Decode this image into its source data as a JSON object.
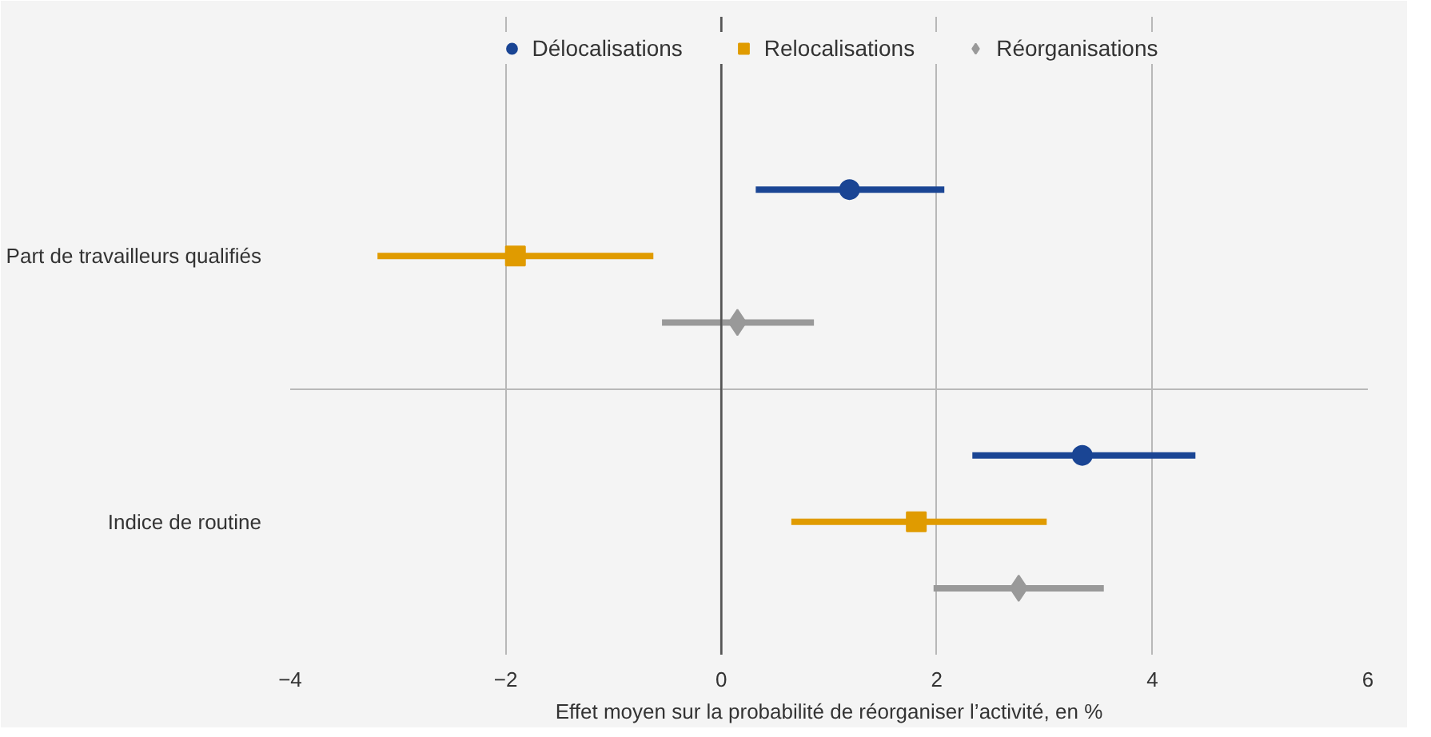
{
  "chart_data": {
    "type": "scatter",
    "orientation": "horizontal",
    "xlabel": "Effet moyen sur la probabilité de réorganiser l’activité, en %",
    "categories": [
      "Part de travailleurs qualifiés",
      "Indice de routine"
    ],
    "series": [
      {
        "name": "Délocalisations",
        "color": "#1a4594",
        "marker": "circle",
        "values": [
          1.19,
          3.35
        ],
        "errors": [
          [
            0.32,
            2.07
          ],
          [
            2.33,
            4.4
          ]
        ]
      },
      {
        "name": "Relocalisations",
        "color": "#e09b00",
        "marker": "square",
        "values": [
          -1.91,
          1.81
        ],
        "errors": [
          [
            -3.19,
            -0.63
          ],
          [
            0.65,
            3.02
          ]
        ]
      },
      {
        "name": "Réorganisations",
        "color": "#999999",
        "marker": "diamond",
        "values": [
          0.15,
          2.76
        ],
        "errors": [
          [
            -0.55,
            0.86
          ],
          [
            1.97,
            3.55
          ]
        ]
      }
    ],
    "xlim": [
      -4,
      6
    ],
    "xticks": [
      {
        "value": -4,
        "label": "−4"
      },
      {
        "value": -2,
        "label": "−2"
      },
      0,
      2,
      4,
      6
    ],
    "ref_lines": [
      {
        "axis": "x",
        "value": 0,
        "color": "#555555"
      }
    ],
    "grid": true,
    "legend": "top"
  }
}
